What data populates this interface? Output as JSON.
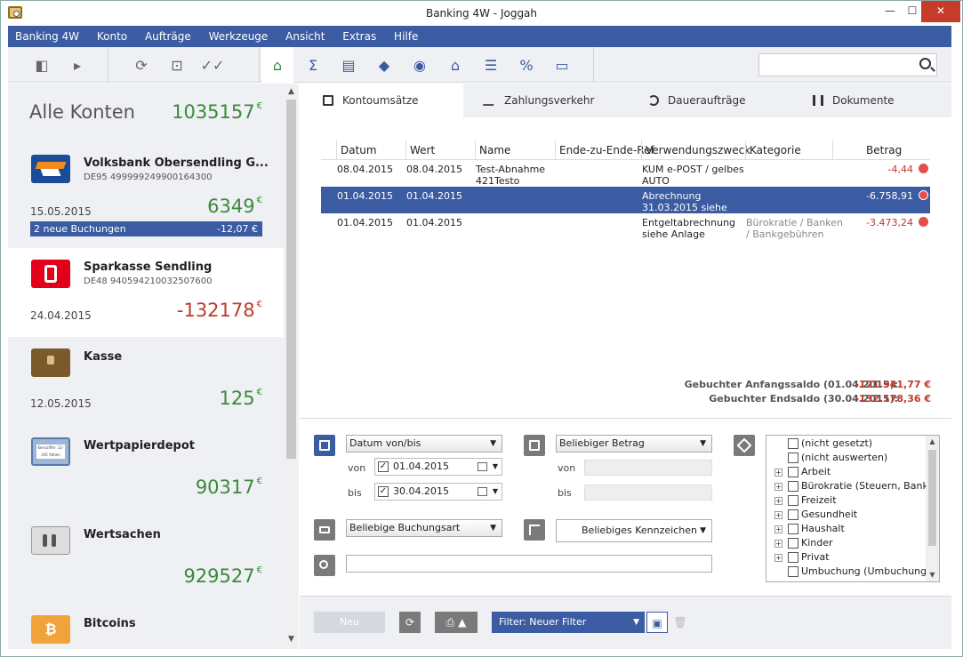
{
  "window": {
    "title": "Banking 4W - Joggah"
  },
  "menu": [
    "Banking 4W",
    "Konto",
    "Aufträge",
    "Werkzeuge",
    "Ansicht",
    "Extras",
    "Hilfe"
  ],
  "toolbar": {
    "search_value": ""
  },
  "sidebar": {
    "all_label": "Alle Konten",
    "all_value": "1035157",
    "currency": "€",
    "accounts": [
      {
        "name": "Volksbank Obersendling G...",
        "iban": "DE95 499999249900164300",
        "date": "15.05.2015",
        "balance": "6349",
        "new_bookings": "2 neue Buchungen",
        "new_amount": "-12,07 €"
      },
      {
        "name": "Sparkasse Sendling",
        "iban": "DE48 940594210032507600",
        "date": "24.04.2015",
        "balance": "-132178"
      },
      {
        "name": "Kasse",
        "date": "12.05.2015",
        "balance": "125"
      },
      {
        "name": "Wertpapierdepot",
        "balance": "90317",
        "logo_text": "Kennziffer: 12-345 Aktien"
      },
      {
        "name": "Wertsachen",
        "balance": "929527"
      },
      {
        "name": "Bitcoins"
      }
    ]
  },
  "tabs": [
    "Kontoumsätze",
    "Zahlungsverkehr",
    "Daueraufträge",
    "Dokumente"
  ],
  "table": {
    "headers": [
      "Datum",
      "Wert",
      "Name",
      "Ende-zu-Ende-Ref",
      "Verwendungszweck",
      "Kategorie",
      "Betrag"
    ],
    "rows": [
      {
        "datum": "08.04.2015",
        "wert": "08.04.2015",
        "name1": "Test-Abnahme",
        "name2": "421Testo",
        "zweck1": "KUM e-POST / gelbes",
        "zweck2": "AUTO",
        "kat1": "",
        "kat2": "",
        "betrag": "-4,44"
      },
      {
        "datum": "01.04.2015",
        "wert": "01.04.2015",
        "name1": "",
        "name2": "",
        "zweck1": "Abrechnung",
        "zweck2": "31.03.2015     siehe",
        "kat1": "",
        "kat2": "",
        "betrag": "-6.758,91"
      },
      {
        "datum": "01.04.2015",
        "wert": "01.04.2015",
        "name1": "",
        "name2": "",
        "zweck1": "Entgeltabrechnung",
        "zweck2": "  siehe Anlage",
        "kat1": "Bürokratie / Banken",
        "kat2": "/ Bankgebühren",
        "betrag": "-3.473,24"
      }
    ]
  },
  "saldo": {
    "start_label": "Gebuchter Anfangssaldo (01.04.2015):",
    "start_value": "-121.941,77 €",
    "end_label": "Gebuchter Endsaldo (30.04.2015):",
    "end_value": "-132.178,36 €"
  },
  "filter": {
    "date_mode": "Datum von/bis",
    "von_label": "von",
    "bis_label": "bis",
    "von_date": "01.04.2015",
    "bis_date": "30.04.2015",
    "amount_mode": "Beliebiger Betrag",
    "booking_type": "Beliebige Buchungsart",
    "flag": "Beliebiges Kennzeichen",
    "text": "",
    "categories": [
      "(nicht gesetzt)",
      "(nicht auswerten)",
      "Arbeit",
      "Bürokratie (Steuern, Banke",
      "Freizeit",
      "Gesundheit",
      "Haushalt",
      "Kinder",
      "Privat",
      "Umbuchung (Umbuchungen"
    ]
  },
  "bottom": {
    "new_label": "Neu",
    "filter_label": "Filter: Neuer Filter"
  }
}
